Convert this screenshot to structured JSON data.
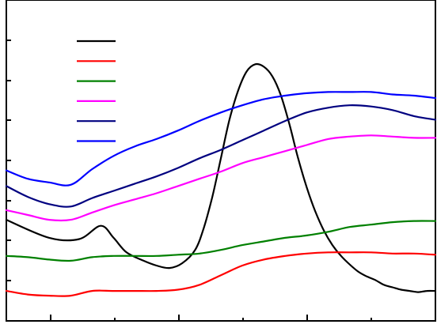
{
  "chart_data": {
    "type": "line",
    "title": "",
    "xlabel": "",
    "ylabel": "",
    "xlim": [
      0,
      100
    ],
    "ylim": [
      0,
      100
    ],
    "grid": false,
    "legend": {
      "position": "top-left",
      "show_text": false
    },
    "series": [
      {
        "color": "#000000",
        "x": [
          0,
          10,
          17,
          22,
          25,
          28,
          32,
          35,
          38,
          41,
          44,
          46,
          48,
          50,
          52,
          54,
          56,
          58,
          60,
          62,
          64,
          66,
          68,
          70,
          72,
          74,
          76,
          78,
          80,
          82,
          84,
          86,
          88,
          90,
          92,
          94,
          96,
          98,
          100
        ],
        "y": [
          28.5,
          21,
          20.5,
          26,
          21,
          15,
          11.5,
          9.5,
          8.5,
          10.5,
          16,
          25,
          38,
          54,
          70,
          82,
          90,
          93,
          92,
          88,
          80,
          68,
          54,
          42,
          32,
          24,
          18,
          13.5,
          10,
          7,
          5,
          3.5,
          1.5,
          0.5,
          -0.5,
          -1,
          -1.5,
          -1,
          -1
        ]
      },
      {
        "color": "#ff0000",
        "x": [
          0,
          5,
          10,
          15,
          20,
          25,
          30,
          35,
          40,
          45,
          50,
          55,
          60,
          65,
          70,
          75,
          80,
          85,
          90,
          95,
          100
        ],
        "y": [
          -1,
          -2.5,
          -3,
          -3,
          -1,
          -1,
          -1,
          -1,
          -0.5,
          1.5,
          5.5,
          9.5,
          12,
          13.5,
          14.5,
          15,
          15,
          15,
          14.5,
          14.5,
          14
        ]
      },
      {
        "color": "#008000",
        "x": [
          0,
          5,
          10,
          15,
          20,
          25,
          30,
          35,
          40,
          45,
          50,
          55,
          60,
          65,
          70,
          75,
          80,
          85,
          90,
          95,
          100
        ],
        "y": [
          13.5,
          13,
          12,
          11.5,
          13,
          13.5,
          13.5,
          13.5,
          14,
          14.5,
          16,
          18,
          19.5,
          21,
          22,
          23.5,
          25.5,
          26.5,
          27.5,
          28,
          28
        ]
      },
      {
        "color": "#ff00ff",
        "x": [
          0,
          5,
          10,
          15,
          20,
          25,
          30,
          35,
          40,
          45,
          50,
          55,
          60,
          65,
          70,
          75,
          80,
          85,
          90,
          95,
          100
        ],
        "y": [
          32.5,
          30.5,
          28.5,
          28.5,
          31.5,
          34.5,
          37,
          39.5,
          42.5,
          45.5,
          48.5,
          52,
          54.5,
          57,
          59.5,
          62,
          63,
          63.5,
          63,
          62.5,
          62.5
        ]
      },
      {
        "color": "#000080",
        "x": [
          0,
          5,
          10,
          15,
          20,
          25,
          30,
          35,
          40,
          45,
          50,
          55,
          60,
          65,
          70,
          75,
          80,
          85,
          90,
          95,
          100
        ],
        "y": [
          42.5,
          38,
          35,
          34,
          37.5,
          40.5,
          43.5,
          46.5,
          50,
          54,
          57.5,
          61.5,
          65.5,
          69.5,
          73,
          75,
          76,
          75.5,
          74,
          71.5,
          70
        ]
      },
      {
        "color": "#0000ff",
        "x": [
          0,
          5,
          10,
          15,
          20,
          25,
          30,
          35,
          40,
          45,
          50,
          55,
          60,
          65,
          70,
          75,
          80,
          85,
          90,
          95,
          100
        ],
        "y": [
          49,
          45.5,
          44,
          43,
          49.5,
          55,
          59,
          62,
          65.5,
          69.5,
          73,
          76,
          78.5,
          80,
          81,
          81.5,
          81.5,
          81.5,
          80.5,
          80,
          79
        ]
      }
    ]
  }
}
